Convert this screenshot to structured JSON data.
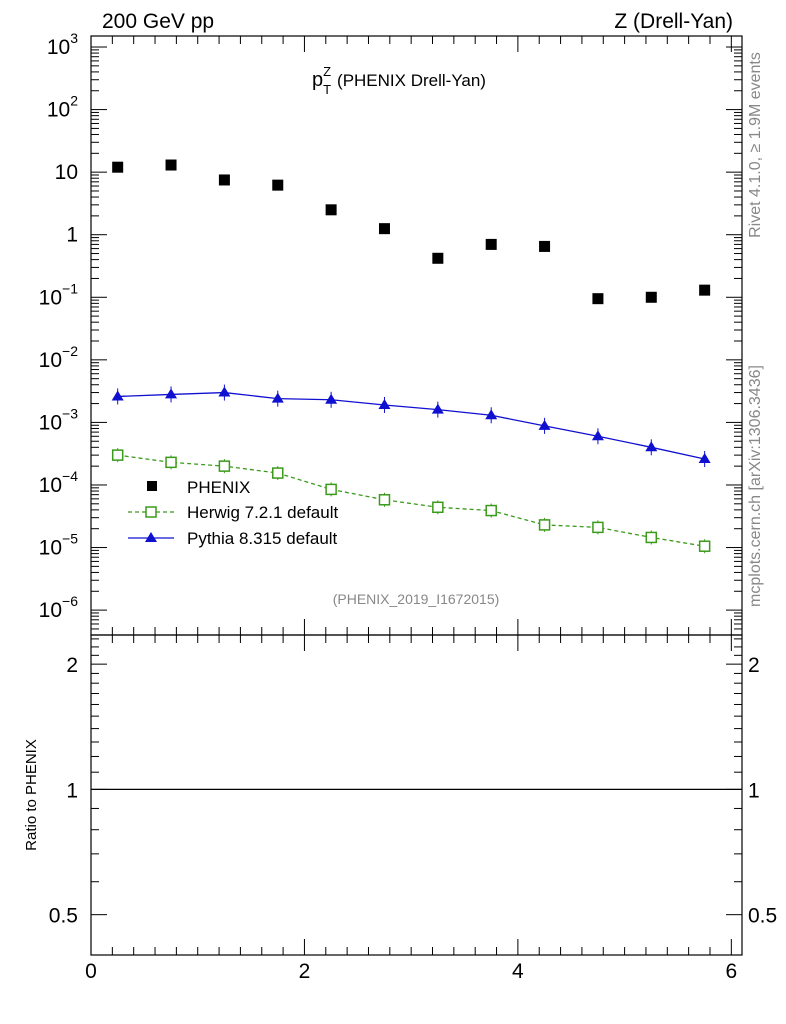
{
  "header": {
    "energy_label": "200 GeV pp",
    "process_label": "Z (Drell-Yan)"
  },
  "side_labels": {
    "rivet": "Rivet 4.1.0, ≥ 1.9M events",
    "site": "mcplots.cern.ch [arXiv:1306.3436]"
  },
  "chart_data": [
    {
      "type": "scatter",
      "panel": "main",
      "title": {
        "p": "p",
        "sup": "Z",
        "sub": "T",
        "rest": "(PHENIX Drell-Yan)"
      },
      "analysis_tag": "(PHENIX_2019_I1672015)",
      "yscale": "log",
      "ylim": [
        4e-07,
        1500
      ],
      "xlim": [
        0,
        6.1
      ],
      "y_tick_labels": [
        {
          "value": 1000,
          "base": "10",
          "exp": "3"
        },
        {
          "value": 100,
          "base": "10",
          "exp": "2"
        },
        {
          "value": 10,
          "base": "10",
          "exp": ""
        },
        {
          "value": 1,
          "base": "1",
          "exp": ""
        },
        {
          "value": 0.1,
          "base": "10",
          "exp": "−1"
        },
        {
          "value": 0.01,
          "base": "10",
          "exp": "−2"
        },
        {
          "value": 0.001,
          "base": "10",
          "exp": "−3"
        },
        {
          "value": 0.0001,
          "base": "10",
          "exp": "−4"
        },
        {
          "value": 1e-05,
          "base": "10",
          "exp": "−5"
        },
        {
          "value": 1e-06,
          "base": "10",
          "exp": "−6"
        }
      ],
      "legend": {
        "position": "lower-left",
        "entries": [
          "PHENIX",
          "Herwig 7.2.1 default",
          "Pythia 8.315 default"
        ]
      },
      "x": [
        0.25,
        0.75,
        1.25,
        1.75,
        2.25,
        2.75,
        3.25,
        3.75,
        4.25,
        4.75,
        5.25,
        5.75
      ],
      "series": [
        {
          "name": "PHENIX",
          "color": "#000000",
          "marker": "square-filled",
          "line": "none",
          "values": [
            12,
            13,
            7.5,
            6.2,
            2.5,
            1.25,
            0.42,
            0.7,
            0.65,
            0.095,
            0.1,
            0.13
          ]
        },
        {
          "name": "Herwig 7.2.1 default",
          "color": "#3a9a1a",
          "marker": "square-open",
          "line": "dashed",
          "values": [
            0.0003,
            0.00023,
            0.0002,
            0.000155,
            8.5e-05,
            5.8e-05,
            4.4e-05,
            3.9e-05,
            2.3e-05,
            2.1e-05,
            1.45e-05,
            1.05e-05
          ]
        },
        {
          "name": "Pythia 8.315 default",
          "color": "#1010d0",
          "marker": "triangle-filled",
          "line": "solid",
          "values": [
            0.0026,
            0.0028,
            0.003,
            0.0024,
            0.0023,
            0.0019,
            0.0016,
            0.0013,
            0.00088,
            0.0006,
            0.0004,
            0.00026
          ]
        }
      ]
    },
    {
      "type": "line",
      "panel": "ratio",
      "ylabel": "Ratio to PHENIX",
      "yscale": "log",
      "ylim": [
        0.4,
        2.35
      ],
      "xlim": [
        0,
        6.1
      ],
      "y_tick_labels": [
        {
          "value": 2,
          "label": "2"
        },
        {
          "value": 1,
          "label": "1"
        },
        {
          "value": 0.5,
          "label": "0.5"
        }
      ],
      "x_tick_labels": [
        {
          "value": 0,
          "label": "0"
        },
        {
          "value": 2,
          "label": "2"
        },
        {
          "value": 4,
          "label": "4"
        },
        {
          "value": 6,
          "label": "6"
        }
      ],
      "reference_line": 1
    }
  ]
}
